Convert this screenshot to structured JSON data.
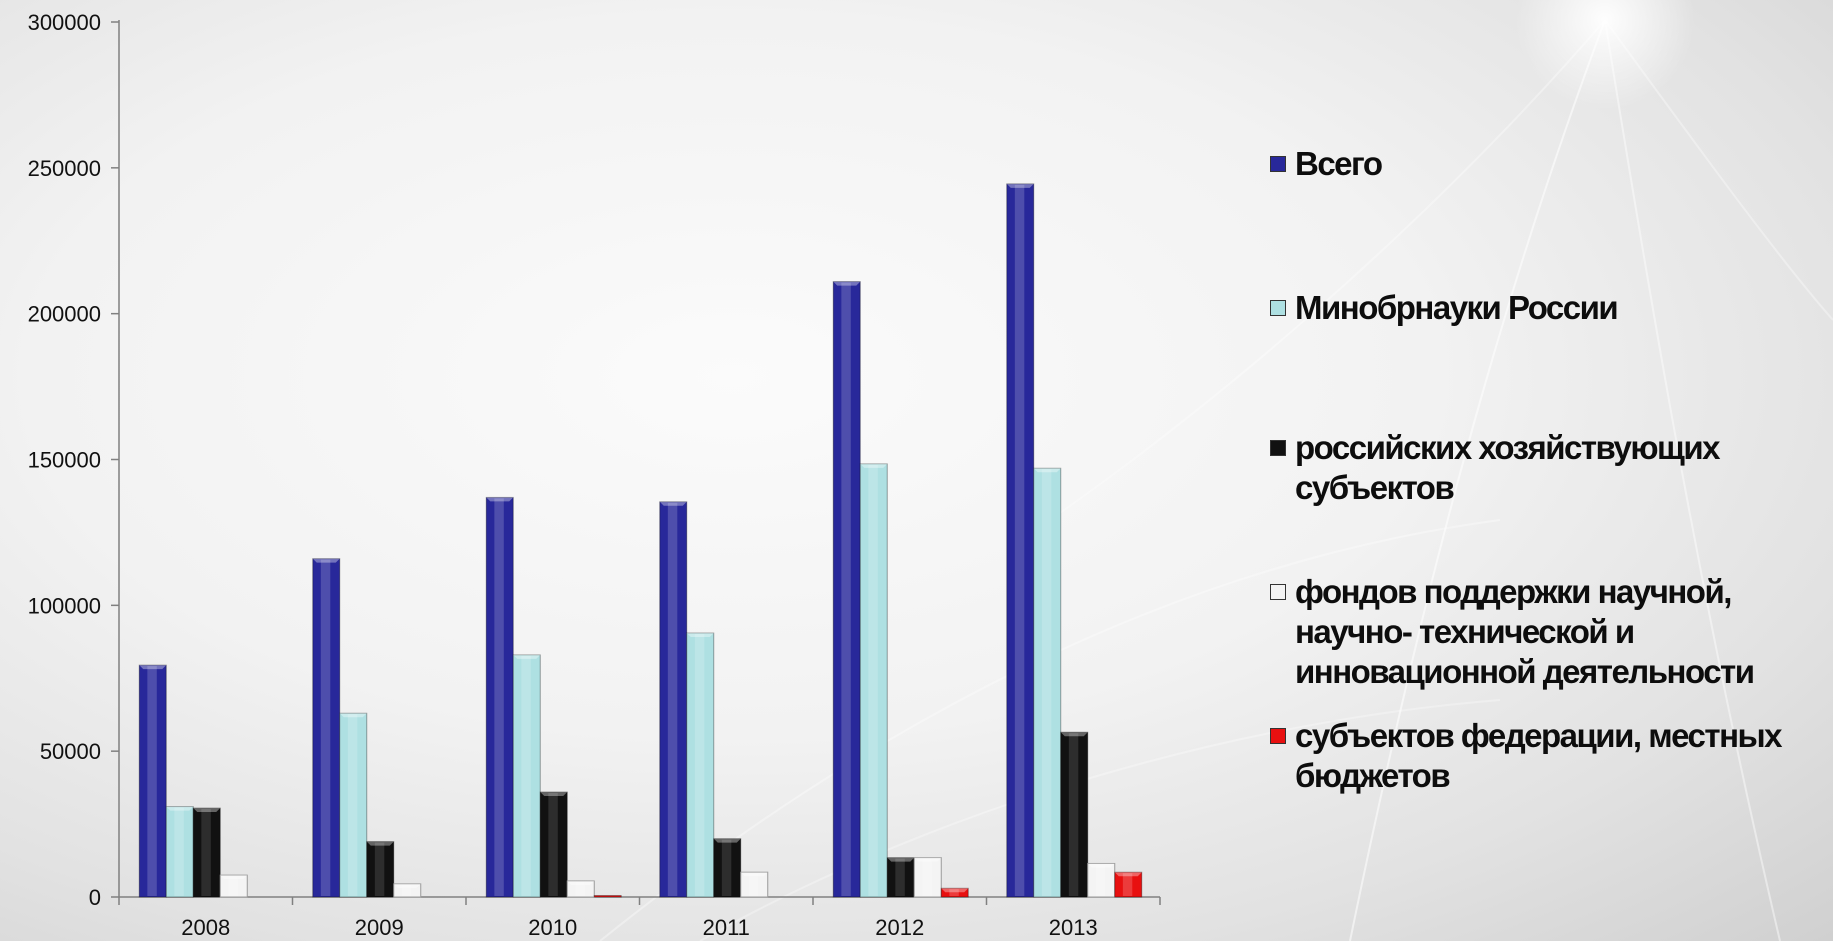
{
  "chart_data": {
    "type": "bar",
    "categories": [
      "2008",
      "2009",
      "2010",
      "2011",
      "2012",
      "2013"
    ],
    "series": [
      {
        "name": "Всего",
        "color": "#28289a",
        "values": [
          79500,
          116000,
          137000,
          135500,
          211000,
          244500
        ]
      },
      {
        "name": "Минобрнауки России",
        "color": "#aee0e2",
        "values": [
          31000,
          63000,
          83000,
          90500,
          148500,
          147000
        ]
      },
      {
        "name": "российских хозяйствующих субъектов",
        "color": "#111111",
        "values": [
          30500,
          19000,
          36000,
          20000,
          13500,
          56500
        ]
      },
      {
        "name": "фондов поддержки научной, научно- технической и инновационной деятельности",
        "color": "#f4f4f4",
        "values": [
          7500,
          4500,
          5500,
          8500,
          13500,
          11500
        ]
      },
      {
        "name": "субъектов федерации, местных бюджетов",
        "color": "#e81010",
        "values": [
          0,
          0,
          500,
          0,
          3000,
          8500
        ]
      }
    ],
    "ylim": [
      0,
      300000
    ],
    "yticks": [
      "0",
      "50000",
      "100000",
      "150000",
      "200000",
      "250000",
      "300000"
    ],
    "xlabel": "",
    "ylabel": "",
    "grid": false,
    "legend_position": "right"
  }
}
